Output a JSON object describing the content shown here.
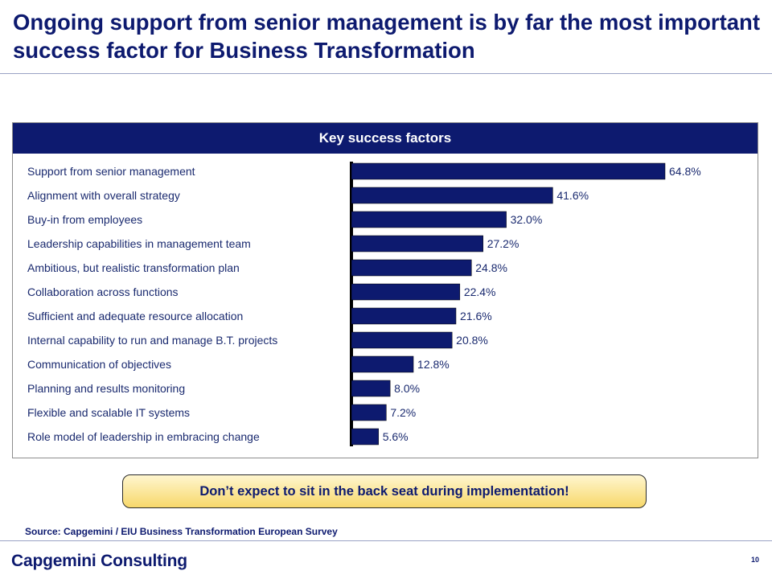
{
  "slide": {
    "title": "Ongoing support from senior management is by far the most important success factor for Business Transformation",
    "panel_header": "Key success factors",
    "callout": "Don’t expect to sit in the back seat during implementation!",
    "source": "Source: Capgemini / EIU Business Transformation European Survey",
    "brand": "Capgemini Consulting",
    "page_number": "10"
  },
  "colors": {
    "navy": "#0d1a6f",
    "callout_gold": "#f7d86a"
  },
  "chart_data": {
    "type": "bar",
    "orientation": "horizontal",
    "categories": [
      "Support from senior management",
      "Alignment with overall strategy",
      "Buy-in from employees",
      "Leadership capabilities in management team",
      "Ambitious, but realistic transformation plan",
      "Collaboration across functions",
      "Sufficient and adequate resource allocation",
      "Internal capability to run and manage B.T. projects",
      "Communication of objectives",
      "Planning and results monitoring",
      "Flexible and scalable IT systems",
      "Role model of leadership in embracing change"
    ],
    "values": [
      64.8,
      41.6,
      32.0,
      27.2,
      24.8,
      22.4,
      21.6,
      20.8,
      12.8,
      8.0,
      7.2,
      5.6
    ],
    "value_labels": [
      "64.8%",
      "41.6%",
      "32.0%",
      "27.2%",
      "24.8%",
      "22.4%",
      "21.6%",
      "20.8%",
      "12.8%",
      "8.0%",
      "7.2%",
      "5.6%"
    ],
    "title": "Key success factors",
    "xlabel": "",
    "ylabel": "",
    "xlim": [
      0,
      64.8
    ],
    "grid": false,
    "legend": "none"
  }
}
